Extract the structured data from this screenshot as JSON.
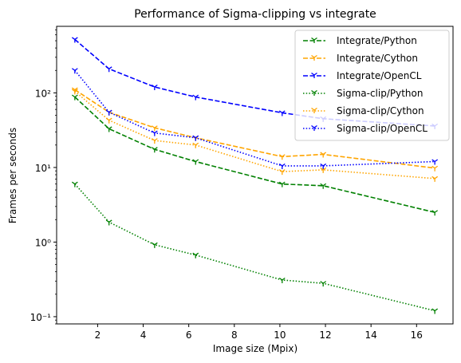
{
  "chart_data": {
    "type": "line",
    "title": "Performance of Sigma-clipping vs integrate",
    "xlabel": "Image size (Mpix)",
    "ylabel": "Frames per seconds",
    "xlim": [
      0.2,
      17.6
    ],
    "ylim": [
      0.08,
      780
    ],
    "yscale": "log",
    "xticks": [
      2,
      4,
      6,
      8,
      10,
      12,
      14,
      16
    ],
    "yticks": [
      0.1,
      1,
      10,
      100
    ],
    "ytick_labels": [
      "10⁻¹",
      "10⁰",
      "10¹",
      "10²"
    ],
    "legend_position": "top-right",
    "grid": false,
    "x": [
      1.0,
      2.5,
      4.5,
      6.3,
      10.1,
      11.9,
      16.8
    ],
    "series": [
      {
        "name": "Integrate/Python",
        "values": [
          88,
          33,
          17.5,
          12,
          6,
          5.7,
          2.5
        ],
        "color": "#008000",
        "dash": "dashed"
      },
      {
        "name": "Integrate/Cython",
        "values": [
          110,
          55,
          34,
          25,
          14,
          15,
          9.8
        ],
        "color": "#ffa500",
        "dash": "dashed"
      },
      {
        "name": "Integrate/OpenCL",
        "values": [
          520,
          210,
          120,
          88,
          54,
          45,
          36
        ],
        "color": "#0000ff",
        "dash": "dashed"
      },
      {
        "name": "Sigma-clip/Python",
        "values": [
          6,
          1.85,
          0.92,
          0.67,
          0.31,
          0.28,
          0.12
        ],
        "color": "#008000",
        "dash": "dotted"
      },
      {
        "name": "Sigma-clip/Cython",
        "values": [
          105,
          43,
          23,
          20,
          8.8,
          9.3,
          7.1
        ],
        "color": "#ffa500",
        "dash": "dotted"
      },
      {
        "name": "Sigma-clip/OpenCL",
        "values": [
          200,
          55,
          29,
          25,
          10.5,
          10.5,
          12
        ],
        "color": "#0000ff",
        "dash": "dotted"
      }
    ]
  }
}
